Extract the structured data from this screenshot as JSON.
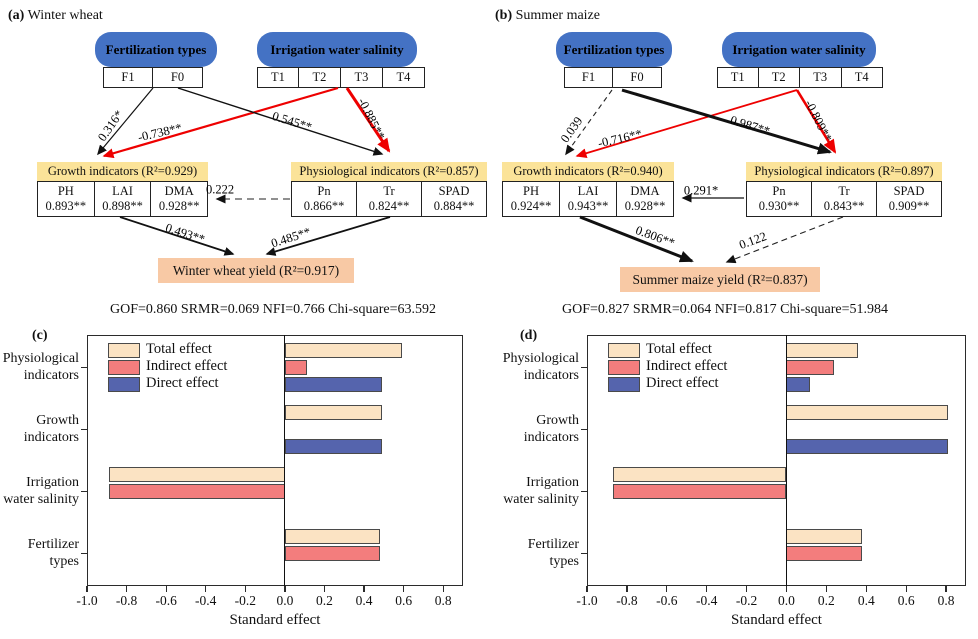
{
  "colors": {
    "node_blue": "#4472C4",
    "header_yellow": "#FBE399",
    "yield_peach": "#F8C9A5",
    "arrow_red": "#EE0000",
    "arrow_black": "#111111",
    "total_fill": "#FBE3C3",
    "indirect_fill": "#F37D7D",
    "direct_fill": "#5564AD"
  },
  "panels": {
    "a": {
      "tag": "(a)",
      "title": "Winter wheat",
      "factor1": "Fertilization types",
      "factor1_levels": [
        "F1",
        "F0"
      ],
      "factor2": "Irrigation water salinity",
      "factor2_levels": [
        "T1",
        "T2",
        "T3",
        "T4"
      ],
      "growth_header": "Growth indicators (R²=0.929)",
      "growth_items": [
        {
          "name": "PH",
          "loading": "0.893**"
        },
        {
          "name": "LAI",
          "loading": "0.898**"
        },
        {
          "name": "DMA",
          "loading": "0.928**"
        }
      ],
      "physio_header": "Physiological indicators (R²=0.857)",
      "physio_items": [
        {
          "name": "Pn",
          "loading": "0.866**"
        },
        {
          "name": "Tr",
          "loading": "0.824**"
        },
        {
          "name": "SPAD",
          "loading": "0.884**"
        }
      ],
      "paths": {
        "fert_to_growth": "0.316*",
        "salinity_to_growth": "-0.738**",
        "fert_to_physio": "0.545**",
        "salinity_to_physio": "-0.885**",
        "physio_to_growth": "0.222",
        "growth_to_yield": "0.493**",
        "physio_to_yield": "0.485**"
      },
      "yield_label": "Winter wheat yield (R²=0.917)",
      "fit": "GOF=0.860 SRMR=0.069 NFI=0.766 Chi-square=63.592"
    },
    "b": {
      "tag": "(b)",
      "title": "Summer maize",
      "factor1": "Fertilization types",
      "factor1_levels": [
        "F1",
        "F0"
      ],
      "factor2": "Irrigation water salinity",
      "factor2_levels": [
        "T1",
        "T2",
        "T3",
        "T4"
      ],
      "growth_header": "Growth indicators (R²=0.940)",
      "growth_items": [
        {
          "name": "PH",
          "loading": "0.924**"
        },
        {
          "name": "LAI",
          "loading": "0.943**"
        },
        {
          "name": "DMA",
          "loading": "0.928**"
        }
      ],
      "physio_header": "Physiological indicators (R²=0.897)",
      "physio_items": [
        {
          "name": "Pn",
          "loading": "0.930**"
        },
        {
          "name": "Tr",
          "loading": "0.843**"
        },
        {
          "name": "SPAD",
          "loading": "0.909**"
        }
      ],
      "paths": {
        "fert_to_growth": "0.039",
        "salinity_to_growth": "-0.716**",
        "fert_to_physio": "0.987**",
        "salinity_to_physio": "-0.809**",
        "physio_to_growth": "0.291*",
        "growth_to_yield": "0.806**",
        "physio_to_yield": "0.122"
      },
      "yield_label": "Summer maize yield (R²=0.837)",
      "fit": "GOF=0.827 SRMR=0.064 NFI=0.817 Chi-square=51.984"
    }
  },
  "chart_data": [
    {
      "id": "c",
      "tag": "(c)",
      "type": "bar",
      "orientation": "horizontal",
      "title": "",
      "xlabel": "Standard effect",
      "ylabel": "",
      "xlim": [
        -1.0,
        0.9
      ],
      "grid": false,
      "legend_position": "top-left",
      "categories": [
        [
          "Physiological",
          "indicators"
        ],
        [
          "Growth",
          "indicators"
        ],
        [
          "Irrigation",
          "water salinity"
        ],
        [
          "Fertilizer",
          "types"
        ]
      ],
      "series": [
        {
          "name": "Total effect",
          "color": "#FBE3C3",
          "values": [
            0.59,
            0.49,
            -0.89,
            0.48
          ]
        },
        {
          "name": "Indirect effect",
          "color": "#F37D7D",
          "values": [
            0.11,
            0.0,
            -0.89,
            0.48
          ]
        },
        {
          "name": "Direct effect",
          "color": "#5564AD",
          "values": [
            0.49,
            0.49,
            0.0,
            0.0
          ]
        }
      ],
      "tick_values": [
        -1.0,
        -0.8,
        -0.6,
        -0.4,
        -0.2,
        0.0,
        0.2,
        0.4,
        0.6,
        0.8
      ],
      "tick_labels": [
        "-1.0",
        "-0.8",
        "-0.6",
        "-0.4",
        "-0.2",
        "0.0",
        "0.2",
        "0.4",
        "0.6",
        "0.8"
      ]
    },
    {
      "id": "d",
      "tag": "(d)",
      "type": "bar",
      "orientation": "horizontal",
      "title": "",
      "xlabel": "Standard effect",
      "ylabel": "",
      "xlim": [
        -1.0,
        0.9
      ],
      "grid": false,
      "legend_position": "top-left",
      "categories": [
        [
          "Physiological",
          "indicators"
        ],
        [
          "Growth",
          "indicators"
        ],
        [
          "Irrigation",
          "water salinity"
        ],
        [
          "Fertilizer",
          "types"
        ]
      ],
      "series": [
        {
          "name": "Total effect",
          "color": "#FBE3C3",
          "values": [
            0.36,
            0.81,
            -0.87,
            0.38
          ]
        },
        {
          "name": "Indirect effect",
          "color": "#F37D7D",
          "values": [
            0.24,
            0.0,
            -0.87,
            0.38
          ]
        },
        {
          "name": "Direct effect",
          "color": "#5564AD",
          "values": [
            0.12,
            0.81,
            0.0,
            0.0
          ]
        }
      ],
      "tick_values": [
        -1.0,
        -0.8,
        -0.6,
        -0.4,
        -0.2,
        0.0,
        0.2,
        0.4,
        0.6,
        0.8
      ],
      "tick_labels": [
        "-1.0",
        "-0.8",
        "-0.6",
        "-0.4",
        "-0.2",
        "0.0",
        "0.2",
        "0.4",
        "0.6",
        "0.8"
      ]
    }
  ]
}
